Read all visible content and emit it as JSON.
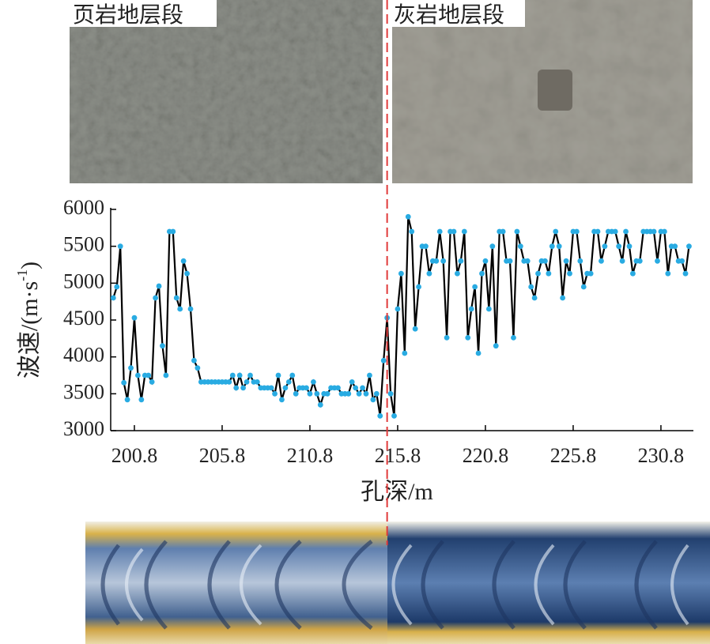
{
  "chart_data": {
    "type": "line",
    "annotations": [
      "页岩地层段",
      "灰岩地层段"
    ],
    "x_label": "孔深/m",
    "y_label": "波速/(m·s",
    "y_label_sup": "-1",
    "y_label_end": ")",
    "x": [
      199.6,
      199.8,
      200,
      200.2,
      200.4,
      200.6,
      200.8,
      201,
      201.2,
      201.4,
      201.6,
      201.8,
      202,
      202.2,
      202.4,
      202.6,
      202.8,
      203,
      203.2,
      203.4,
      203.6,
      203.8,
      204,
      204.2,
      204.4,
      204.6,
      204.8,
      205,
      205.2,
      205.4,
      205.6,
      205.8,
      206,
      206.2,
      206.4,
      206.6,
      206.8,
      207,
      207.2,
      207.4,
      207.6,
      207.8,
      208,
      208.2,
      208.4,
      208.6,
      208.8,
      209,
      209.2,
      209.4,
      209.6,
      209.8,
      210,
      210.2,
      210.4,
      210.6,
      210.8,
      211,
      211.2,
      211.4,
      211.6,
      211.8,
      212,
      212.2,
      212.4,
      212.6,
      212.8,
      213,
      213.2,
      213.4,
      213.6,
      213.8,
      214,
      214.2,
      214.4,
      214.6,
      214.8,
      215,
      215.2,
      215.4,
      215.6,
      215.8,
      216,
      216.2,
      216.4,
      216.6,
      216.8,
      217,
      217.2,
      217.4,
      217.6,
      217.8,
      218,
      218.2,
      218.4,
      218.6,
      218.8,
      219,
      219.2,
      219.4,
      219.6,
      219.8,
      220,
      220.2,
      220.4,
      220.6,
      220.8,
      221,
      221.2,
      221.4,
      221.6,
      221.8,
      222,
      222.2,
      222.4,
      222.6,
      222.8,
      223,
      223.2,
      223.4,
      223.6,
      223.8,
      224,
      224.2,
      224.4,
      224.6,
      224.8,
      225,
      225.2,
      225.4,
      225.6,
      225.8,
      226,
      226.2,
      226.4,
      226.6,
      226.8,
      227,
      227.2,
      227.4,
      227.6,
      227.8,
      228,
      228.2,
      228.4,
      228.6,
      228.8,
      229,
      229.2,
      229.4,
      229.6,
      229.8,
      230,
      230.2,
      230.4,
      230.6,
      230.8,
      231,
      231.2,
      231.4,
      231.6,
      231.8,
      232,
      232.2,
      232.4
    ],
    "series": [
      {
        "color": "#000000",
        "marker_color": "#29abe2",
        "values": [
          4800,
          4950,
          5500,
          3650,
          3420,
          3850,
          4530,
          3750,
          3420,
          3750,
          3750,
          3660,
          4800,
          4960,
          4150,
          3750,
          5700,
          5700,
          4800,
          4650,
          5300,
          5130,
          4650,
          3950,
          3850,
          3660,
          3660,
          3660,
          3660,
          3660,
          3660,
          3660,
          3660,
          3660,
          3750,
          3580,
          3750,
          3580,
          3660,
          3750,
          3660,
          3660,
          3580,
          3580,
          3580,
          3580,
          3500,
          3750,
          3420,
          3580,
          3660,
          3750,
          3500,
          3580,
          3580,
          3580,
          3500,
          3660,
          3500,
          3350,
          3500,
          3500,
          3580,
          3580,
          3580,
          3500,
          3500,
          3500,
          3660,
          3580,
          3500,
          3580,
          3500,
          3750,
          3420,
          3500,
          3200,
          3950,
          4530,
          3500,
          3200,
          4650,
          5130,
          4050,
          5900,
          5700,
          4380,
          4950,
          5500,
          5500,
          5130,
          5300,
          5300,
          5700,
          5300,
          4260,
          5700,
          5700,
          5130,
          5300,
          5700,
          4260,
          4650,
          4950,
          4050,
          5130,
          5300,
          4650,
          5500,
          4150,
          5700,
          5700,
          5300,
          5300,
          4260,
          5700,
          5500,
          5300,
          5300,
          4950,
          4800,
          5130,
          5300,
          5300,
          5130,
          5500,
          5700,
          5500,
          4800,
          5300,
          5130,
          5700,
          5700,
          5300,
          4950,
          5130,
          5130,
          5700,
          5700,
          5300,
          5500,
          5700,
          5700,
          5700,
          5500,
          5300,
          5700,
          5500,
          5130,
          5300,
          5300,
          5700,
          5700,
          5700,
          5700,
          5300,
          5700,
          5700,
          5130,
          5500,
          5500,
          5300,
          5300,
          5130,
          5500
        ]
      }
    ],
    "xlim": [
      199.45,
      232.65
    ],
    "ylim": [
      3000,
      6000
    ],
    "xticks": [
      200.8,
      205.8,
      210.8,
      215.8,
      220.8,
      225.8,
      230.8
    ],
    "yticks": [
      3000,
      3500,
      4000,
      4500,
      5000,
      5500,
      6000
    ],
    "boundary": 215.2,
    "boundary_color": "#e03a3a"
  }
}
